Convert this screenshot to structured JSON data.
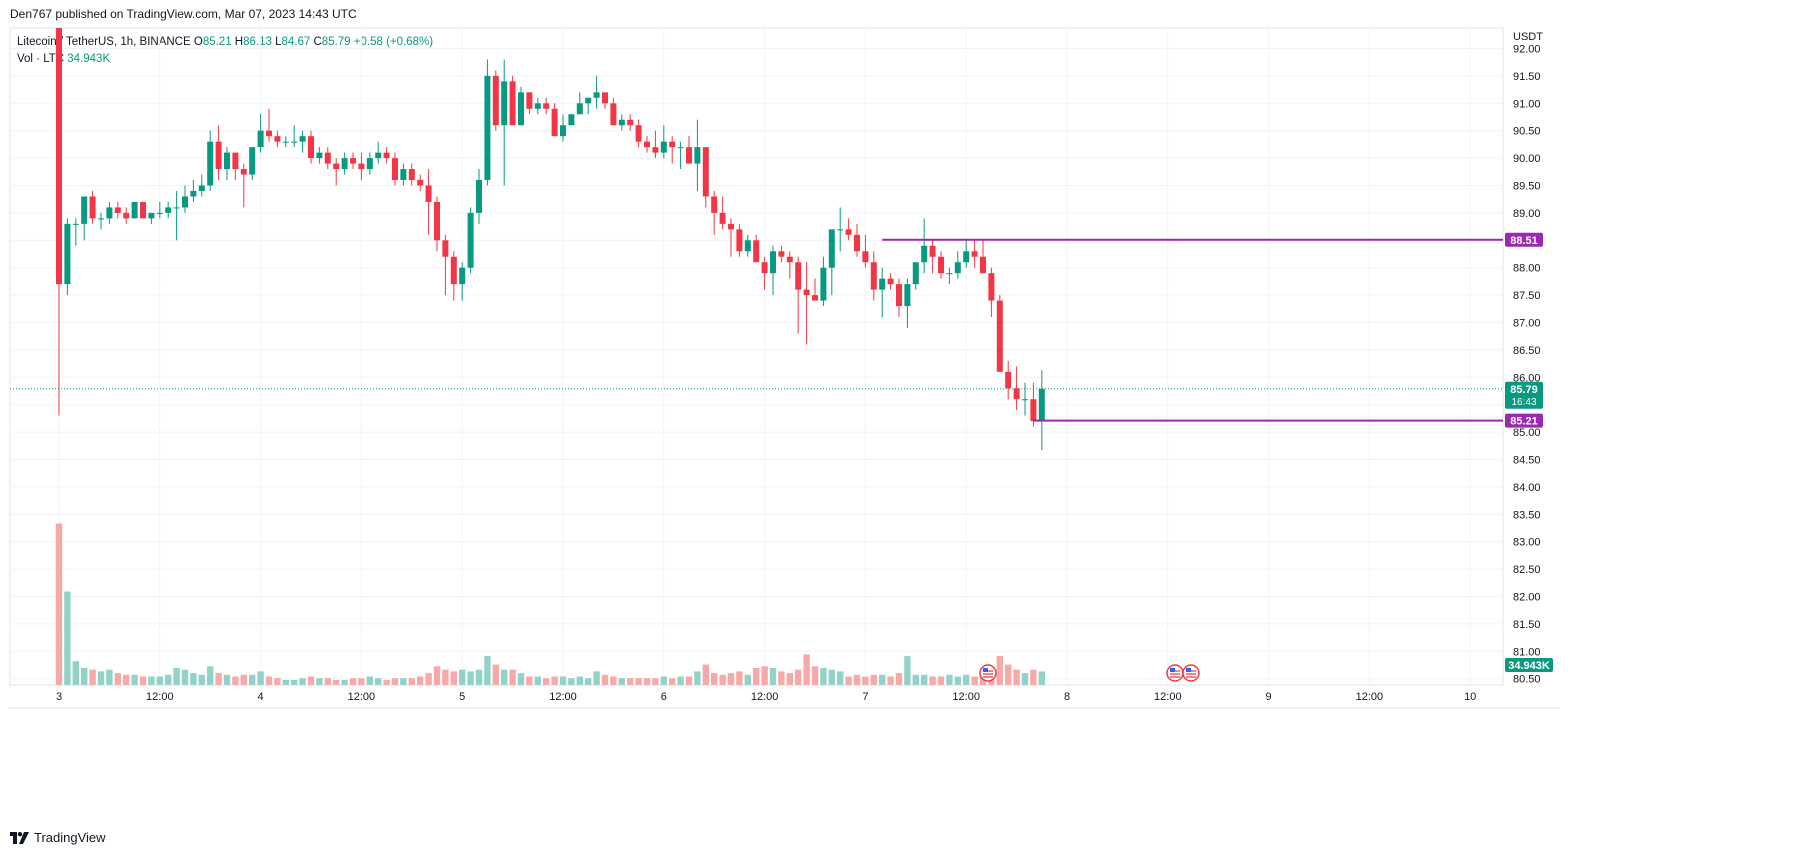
{
  "header": {
    "published_by": "Den767 published on TradingView.com, Mar 07, 2023 14:43 UTC"
  },
  "legend": {
    "symbol": "Litecoin / TetherUS, 1h, BINANCE",
    "open_label": "O",
    "open": "85.21",
    "high_label": "H",
    "high": "86.13",
    "low_label": "L",
    "low": "84.67",
    "close_label": "C",
    "close": "85.79",
    "change": "+0.58 (+0.68%)",
    "vol_label": "Vol · LTC",
    "vol_value": "34.943K"
  },
  "footer": {
    "brand": "TradingView",
    "logo_icon": "tradingview-logo-icon"
  },
  "colors": {
    "up": "#089981",
    "down": "#f23645",
    "vol_up": "#92d2c8",
    "vol_down": "#f7a9a7",
    "level": "#9c27b0",
    "grid": "#f0f3fa"
  },
  "chart_data": {
    "type": "candlestick",
    "axis_unit": "USDT",
    "y_ticks": [
      "92.00",
      "91.50",
      "91.00",
      "90.50",
      "90.00",
      "89.50",
      "89.00",
      "88.50",
      "88.00",
      "87.50",
      "87.00",
      "86.50",
      "86.00",
      "85.50",
      "85.00",
      "84.50",
      "84.00",
      "83.50",
      "83.00",
      "82.50",
      "82.00",
      "81.50",
      "81.00",
      "80.50"
    ],
    "ylim": [
      80.5,
      92.0
    ],
    "x_ticks": [
      "3",
      "12:00",
      "4",
      "12:00",
      "5",
      "12:00",
      "6",
      "12:00",
      "7",
      "12:00",
      "8",
      "12:00",
      "9",
      "12:00",
      "10"
    ],
    "first_candle_time": "Mar 03 00:00",
    "interval": "1h",
    "price_label": "85.79",
    "countdown": "16:43",
    "volume_label": "34.943K",
    "levels": [
      {
        "value": 88.51,
        "label": "88.51",
        "from_hour": 98
      },
      {
        "value": 85.21,
        "label": "85.21",
        "from_hour": 116
      }
    ],
    "candles": [
      [
        92.9,
        93.1,
        85.3,
        87.7,
        95
      ],
      [
        87.7,
        88.9,
        87.5,
        88.8,
        55
      ],
      [
        88.8,
        88.9,
        88.4,
        88.8,
        14
      ],
      [
        88.8,
        89.3,
        88.5,
        89.3,
        10
      ],
      [
        89.3,
        89.4,
        88.8,
        88.9,
        9
      ],
      [
        88.9,
        89.0,
        88.7,
        88.9,
        8
      ],
      [
        88.9,
        89.2,
        88.8,
        89.1,
        9
      ],
      [
        89.1,
        89.2,
        88.9,
        89.0,
        7
      ],
      [
        89.0,
        89.1,
        88.8,
        88.9,
        6
      ],
      [
        88.9,
        89.2,
        88.9,
        89.2,
        6
      ],
      [
        89.2,
        89.2,
        88.9,
        88.9,
        5
      ],
      [
        88.9,
        89.0,
        88.8,
        89.0,
        5
      ],
      [
        89.0,
        89.2,
        88.9,
        89.0,
        5
      ],
      [
        89.0,
        89.2,
        88.9,
        89.1,
        6
      ],
      [
        89.1,
        89.4,
        88.5,
        89.1,
        10
      ],
      [
        89.1,
        89.5,
        89.0,
        89.3,
        9
      ],
      [
        89.3,
        89.6,
        89.2,
        89.4,
        7
      ],
      [
        89.4,
        89.7,
        89.3,
        89.5,
        6
      ],
      [
        89.5,
        90.5,
        89.4,
        90.3,
        11
      ],
      [
        90.3,
        90.6,
        89.6,
        89.8,
        7
      ],
      [
        89.8,
        90.2,
        89.6,
        90.1,
        6
      ],
      [
        90.1,
        90.1,
        89.6,
        89.8,
        5
      ],
      [
        89.8,
        89.9,
        89.1,
        89.7,
        6
      ],
      [
        89.7,
        90.2,
        89.6,
        90.2,
        6
      ],
      [
        90.2,
        90.8,
        90.1,
        90.5,
        8
      ],
      [
        90.5,
        90.9,
        90.3,
        90.4,
        5
      ],
      [
        90.4,
        90.5,
        90.2,
        90.3,
        4
      ],
      [
        90.3,
        90.4,
        90.2,
        90.3,
        3
      ],
      [
        90.3,
        90.6,
        90.2,
        90.3,
        3
      ],
      [
        90.3,
        90.5,
        90.1,
        90.4,
        4
      ],
      [
        90.4,
        90.5,
        89.9,
        90.0,
        5
      ],
      [
        90.0,
        90.2,
        89.9,
        90.1,
        4
      ],
      [
        90.1,
        90.2,
        89.8,
        89.9,
        4
      ],
      [
        89.9,
        90.0,
        89.5,
        89.8,
        3
      ],
      [
        89.8,
        90.1,
        89.7,
        90.0,
        3
      ],
      [
        90.0,
        90.1,
        89.8,
        89.9,
        4
      ],
      [
        89.9,
        90.1,
        89.6,
        89.8,
        4
      ],
      [
        89.8,
        90.1,
        89.7,
        90.0,
        5
      ],
      [
        90.0,
        90.3,
        89.9,
        90.1,
        4
      ],
      [
        90.1,
        90.2,
        89.9,
        90.0,
        3
      ],
      [
        90.0,
        90.1,
        89.5,
        89.6,
        4
      ],
      [
        89.6,
        89.9,
        89.5,
        89.8,
        4
      ],
      [
        89.8,
        89.9,
        89.5,
        89.6,
        4
      ],
      [
        89.6,
        89.7,
        89.4,
        89.5,
        5
      ],
      [
        89.5,
        89.8,
        88.6,
        89.2,
        7
      ],
      [
        89.2,
        89.3,
        88.3,
        88.5,
        11
      ],
      [
        88.5,
        88.6,
        87.5,
        88.2,
        9
      ],
      [
        88.2,
        88.3,
        87.4,
        87.7,
        8
      ],
      [
        87.7,
        88.1,
        87.4,
        88.0,
        9
      ],
      [
        88.0,
        89.1,
        87.9,
        89.0,
        8
      ],
      [
        89.0,
        89.8,
        88.8,
        89.6,
        9
      ],
      [
        89.6,
        91.8,
        89.5,
        91.5,
        17
      ],
      [
        91.5,
        91.6,
        90.5,
        90.6,
        12
      ],
      [
        90.6,
        91.8,
        89.5,
        91.4,
        9
      ],
      [
        91.4,
        91.5,
        90.6,
        90.6,
        9
      ],
      [
        90.6,
        91.3,
        90.6,
        91.2,
        7
      ],
      [
        91.2,
        91.2,
        90.8,
        90.9,
        5
      ],
      [
        90.9,
        91.1,
        90.8,
        91.0,
        5
      ],
      [
        91.0,
        91.1,
        90.8,
        90.9,
        4
      ],
      [
        90.9,
        91.0,
        90.4,
        90.4,
        5
      ],
      [
        90.4,
        90.8,
        90.3,
        90.6,
        5
      ],
      [
        90.6,
        90.8,
        90.6,
        90.8,
        4
      ],
      [
        90.8,
        91.2,
        90.8,
        91.0,
        5
      ],
      [
        91.0,
        91.1,
        90.8,
        91.1,
        4
      ],
      [
        91.1,
        91.5,
        90.9,
        91.2,
        8
      ],
      [
        91.2,
        91.2,
        90.9,
        91.0,
        6
      ],
      [
        91.0,
        91.1,
        90.6,
        90.6,
        5
      ],
      [
        90.6,
        90.8,
        90.5,
        90.7,
        4
      ],
      [
        90.7,
        90.8,
        90.5,
        90.6,
        4
      ],
      [
        90.6,
        90.7,
        90.2,
        90.3,
        4
      ],
      [
        90.3,
        90.4,
        90.1,
        90.2,
        4
      ],
      [
        90.2,
        90.5,
        90.0,
        90.1,
        4
      ],
      [
        90.1,
        90.6,
        90.0,
        90.3,
        5
      ],
      [
        90.3,
        90.4,
        89.9,
        90.2,
        4
      ],
      [
        90.2,
        90.3,
        89.8,
        90.2,
        5
      ],
      [
        90.2,
        90.4,
        89.9,
        89.9,
        5
      ],
      [
        89.9,
        90.7,
        89.4,
        90.2,
        8
      ],
      [
        90.2,
        90.2,
        89.1,
        89.3,
        12
      ],
      [
        89.3,
        89.4,
        88.6,
        89.0,
        7
      ],
      [
        89.0,
        89.3,
        88.7,
        88.8,
        6
      ],
      [
        88.8,
        88.9,
        88.2,
        88.7,
        7
      ],
      [
        88.7,
        88.8,
        88.2,
        88.3,
        8
      ],
      [
        88.3,
        88.6,
        88.2,
        88.5,
        6
      ],
      [
        88.5,
        88.6,
        88.1,
        88.1,
        10
      ],
      [
        88.1,
        88.2,
        87.6,
        87.9,
        11
      ],
      [
        87.9,
        88.4,
        87.5,
        88.3,
        10
      ],
      [
        88.3,
        88.4,
        88.1,
        88.2,
        8
      ],
      [
        88.2,
        88.3,
        87.8,
        88.1,
        7
      ],
      [
        88.1,
        88.2,
        86.8,
        87.6,
        9
      ],
      [
        87.6,
        88.1,
        86.6,
        87.5,
        18
      ],
      [
        87.5,
        87.8,
        87.4,
        87.4,
        11
      ],
      [
        87.4,
        88.2,
        87.3,
        88.0,
        10
      ],
      [
        88.0,
        88.7,
        87.5,
        88.7,
        9
      ],
      [
        88.7,
        89.1,
        88.3,
        88.7,
        8
      ],
      [
        88.7,
        88.9,
        88.5,
        88.6,
        5
      ],
      [
        88.6,
        88.8,
        88.2,
        88.3,
        6
      ],
      [
        88.3,
        88.6,
        88.0,
        88.1,
        5
      ],
      [
        88.1,
        88.3,
        87.4,
        87.6,
        6
      ],
      [
        87.6,
        88.0,
        87.1,
        87.8,
        6
      ],
      [
        87.8,
        87.9,
        87.6,
        87.7,
        5
      ],
      [
        87.7,
        87.8,
        87.1,
        87.3,
        7
      ],
      [
        87.3,
        87.8,
        86.9,
        87.7,
        17
      ],
      [
        87.7,
        88.0,
        87.6,
        88.1,
        6
      ],
      [
        88.1,
        88.9,
        87.9,
        88.4,
        6
      ],
      [
        88.4,
        88.5,
        87.9,
        88.2,
        5
      ],
      [
        88.2,
        88.3,
        87.8,
        87.9,
        5
      ],
      [
        87.9,
        88.0,
        87.7,
        87.9,
        6
      ],
      [
        87.9,
        88.3,
        87.8,
        88.1,
        5
      ],
      [
        88.1,
        88.5,
        88.0,
        88.3,
        6
      ],
      [
        88.3,
        88.5,
        88.0,
        88.2,
        5
      ],
      [
        88.2,
        88.5,
        87.9,
        87.9,
        7
      ],
      [
        87.9,
        88.0,
        87.1,
        87.4,
        10
      ],
      [
        87.4,
        87.5,
        86.1,
        86.1,
        17
      ],
      [
        86.1,
        86.3,
        85.6,
        85.8,
        12
      ],
      [
        85.8,
        86.2,
        85.4,
        85.6,
        9
      ],
      [
        85.6,
        85.9,
        85.3,
        85.6,
        7
      ],
      [
        85.6,
        85.9,
        85.1,
        85.2,
        9
      ],
      [
        85.21,
        86.13,
        84.67,
        85.79,
        8
      ]
    ],
    "events_label": "US"
  }
}
